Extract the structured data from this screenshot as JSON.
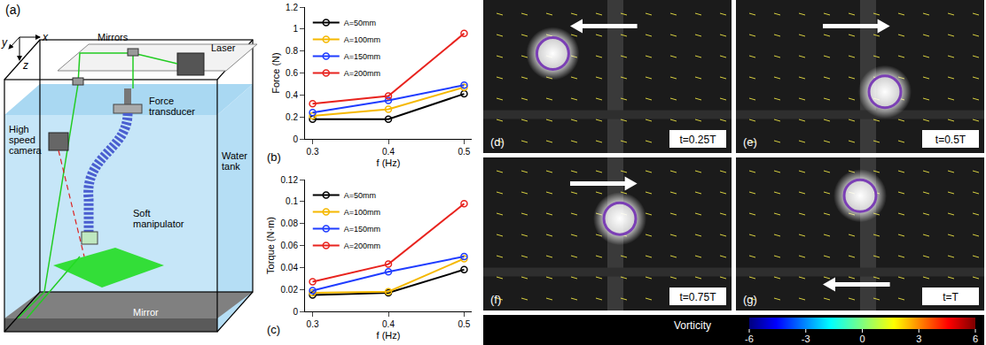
{
  "diagram": {
    "label": "(a)",
    "axes": [
      "x",
      "y",
      "z"
    ],
    "components": {
      "mirrors": "Mirrors",
      "laser": "Laser",
      "camera": "High speed camera",
      "transducer": "Force transducer",
      "tank": "Water tank",
      "manipulator": "Soft manipulator",
      "mirror": "Mirror"
    }
  },
  "chart_data": [
    {
      "type": "line",
      "label": "(b)",
      "xlabel": "f (Hz)",
      "ylabel": "Force (N)",
      "x": [
        0.3,
        0.4,
        0.5
      ],
      "xlim": [
        0.29,
        0.51
      ],
      "xticks": [
        0.3,
        0.4,
        0.5
      ],
      "ylim": [
        0,
        1.2
      ],
      "yticks": [
        0,
        0.2,
        0.4,
        0.6,
        0.8,
        1,
        1.2
      ],
      "grid": false,
      "legend": "upper left",
      "marker": "circle-open",
      "series": [
        {
          "name": "A=50mm",
          "color": "#000000",
          "values": [
            0.18,
            0.18,
            0.41
          ]
        },
        {
          "name": "A=100mm",
          "color": "#f5b800",
          "values": [
            0.21,
            0.27,
            0.47
          ]
        },
        {
          "name": "A=150mm",
          "color": "#1f3cff",
          "values": [
            0.24,
            0.35,
            0.49
          ]
        },
        {
          "name": "A=200mm",
          "color": "#e8231e",
          "values": [
            0.32,
            0.39,
            0.96
          ]
        }
      ]
    },
    {
      "type": "line",
      "label": "(c)",
      "xlabel": "f (Hz)",
      "ylabel": "Torque (N·m)",
      "x": [
        0.3,
        0.4,
        0.5
      ],
      "xlim": [
        0.29,
        0.51
      ],
      "xticks": [
        0.3,
        0.4,
        0.5
      ],
      "ylim": [
        0,
        0.12
      ],
      "yticks": [
        0,
        0.02,
        0.04,
        0.06,
        0.08,
        0.1,
        0.12
      ],
      "grid": false,
      "legend": "upper left",
      "marker": "circle-open",
      "series": [
        {
          "name": "A=50mm",
          "color": "#000000",
          "values": [
            0.015,
            0.017,
            0.038
          ]
        },
        {
          "name": "A=100mm",
          "color": "#f5b800",
          "values": [
            0.017,
            0.018,
            0.048
          ]
        },
        {
          "name": "A=150mm",
          "color": "#1f3cff",
          "values": [
            0.019,
            0.036,
            0.05
          ]
        },
        {
          "name": "A=200mm",
          "color": "#e8231e",
          "values": [
            0.027,
            0.043,
            0.098
          ]
        }
      ]
    }
  ],
  "flow_panels": {
    "panels": [
      {
        "label": "(d)",
        "time": "t=0.25T",
        "arrow": "left"
      },
      {
        "label": "(e)",
        "time": "t=0.5T",
        "arrow": "right"
      },
      {
        "label": "(f)",
        "time": "t=0.75T",
        "arrow": "right"
      },
      {
        "label": "(g)",
        "time": "t=T",
        "arrow": "left"
      }
    ],
    "colorbar": {
      "label": "Vorticity",
      "range": [
        -6,
        6
      ],
      "ticks": [
        -6,
        -3,
        0,
        3,
        6
      ]
    }
  }
}
